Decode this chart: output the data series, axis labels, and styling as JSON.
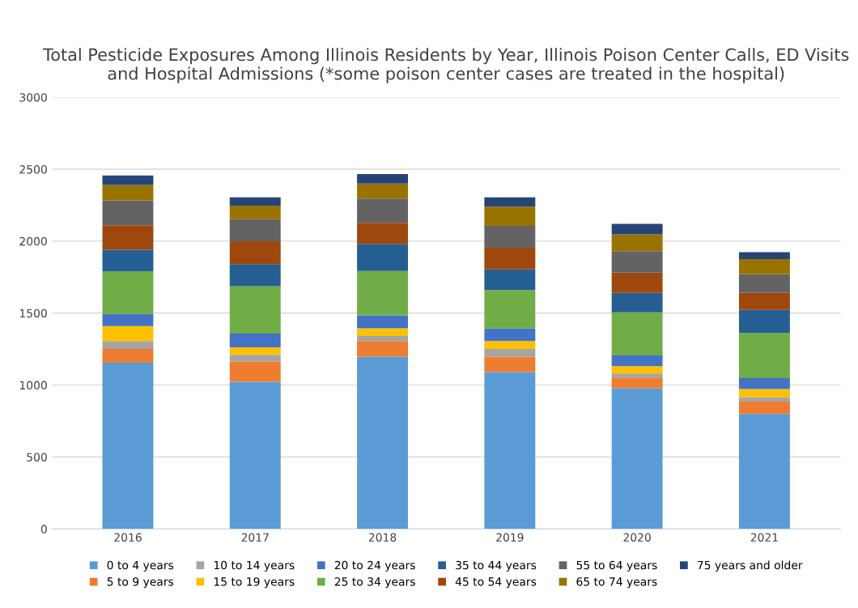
{
  "chart_data": {
    "type": "bar",
    "stacked": true,
    "title": "Total Pesticide Exposures Among Illinois Residents by Year, Illinois Poison Center Calls, ED Visits and Hospital Admissions (*some poison center cases are treated in the hospital)",
    "categories": [
      "2016",
      "2017",
      "2018",
      "2019",
      "2020",
      "2021"
    ],
    "series": [
      {
        "name": "0 to 4 years",
        "color": "#5b9bd5",
        "values": [
          1156,
          1023,
          1198,
          1091,
          978,
          800
        ]
      },
      {
        "name": "5 to 9 years",
        "color": "#ed7d31",
        "values": [
          95,
          141,
          108,
          107,
          75,
          85
        ]
      },
      {
        "name": "10 to 14 years",
        "color": "#a5a5a5",
        "values": [
          55,
          47,
          35,
          53,
          28,
          32
        ]
      },
      {
        "name": "15 to 19 years",
        "color": "#ffc000",
        "values": [
          104,
          51,
          53,
          55,
          51,
          56
        ]
      },
      {
        "name": "20 to 24 years",
        "color": "#4472c4",
        "values": [
          84,
          96,
          91,
          88,
          74,
          76
        ]
      },
      {
        "name": "25 to 34 years",
        "color": "#70ad47",
        "values": [
          295,
          329,
          308,
          266,
          300,
          313
        ]
      },
      {
        "name": "35 to 44 years",
        "color": "#255e91",
        "values": [
          151,
          153,
          188,
          144,
          135,
          161
        ]
      },
      {
        "name": "45 to 54 years",
        "color": "#9e480e",
        "values": [
          171,
          160,
          147,
          150,
          140,
          118
        ]
      },
      {
        "name": "55 to 64 years",
        "color": "#636363",
        "values": [
          172,
          153,
          168,
          152,
          149,
          131
        ]
      },
      {
        "name": "65 to 74 years",
        "color": "#997300",
        "values": [
          107,
          94,
          104,
          134,
          117,
          103
        ]
      },
      {
        "name": "75 years and older",
        "color": "#264478",
        "values": [
          67,
          57,
          66,
          65,
          74,
          49
        ]
      }
    ],
    "ylim": [
      0,
      3000
    ],
    "yticks": [
      0,
      500,
      1000,
      1500,
      2000,
      2500,
      3000
    ],
    "grid": "y",
    "legend": "bottom"
  }
}
